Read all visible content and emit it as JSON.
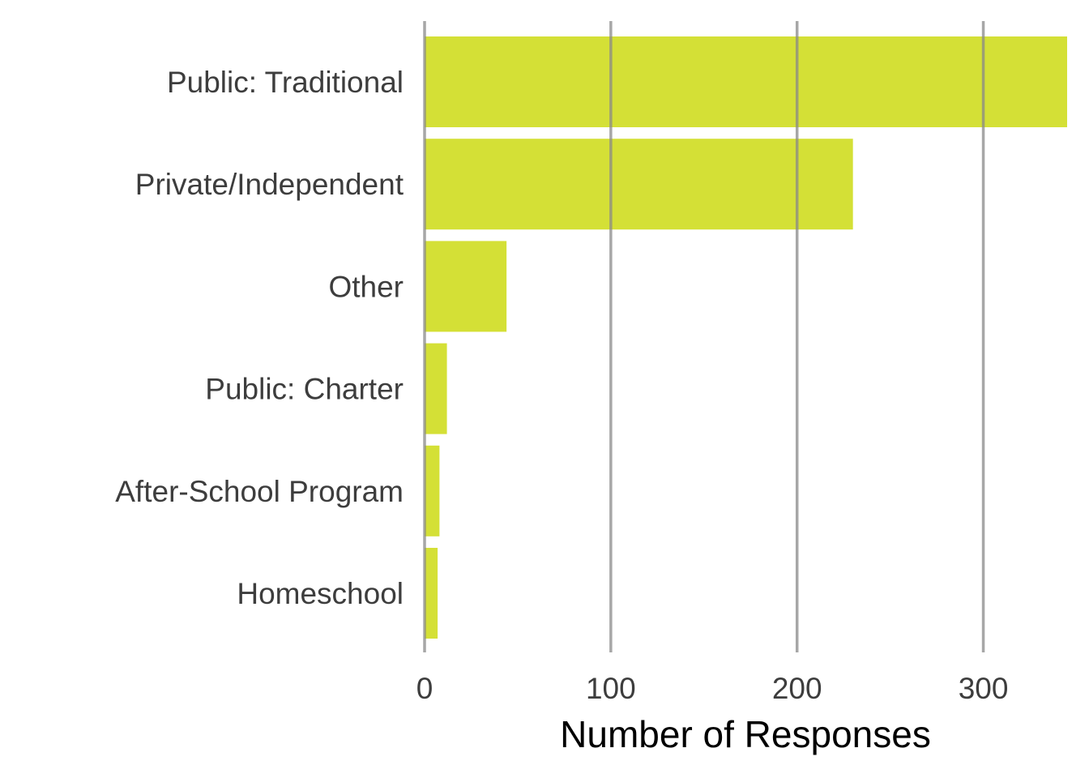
{
  "chart_data": {
    "type": "bar",
    "orientation": "horizontal",
    "categories": [
      "Public: Traditional",
      "Private/Independent",
      "Other",
      "Public: Charter",
      "After-School Program",
      "Homeschool"
    ],
    "values": [
      345,
      230,
      44,
      12,
      8,
      7
    ],
    "title": "",
    "xlabel": "Number of Responses",
    "ylabel": "",
    "xlim": [
      0,
      345
    ],
    "xticks": [
      0,
      100,
      200,
      300
    ],
    "grid": "vertical major",
    "legend": "none",
    "colors": {
      "bar": "#d4e036",
      "grid": "#8a8a8a"
    }
  }
}
